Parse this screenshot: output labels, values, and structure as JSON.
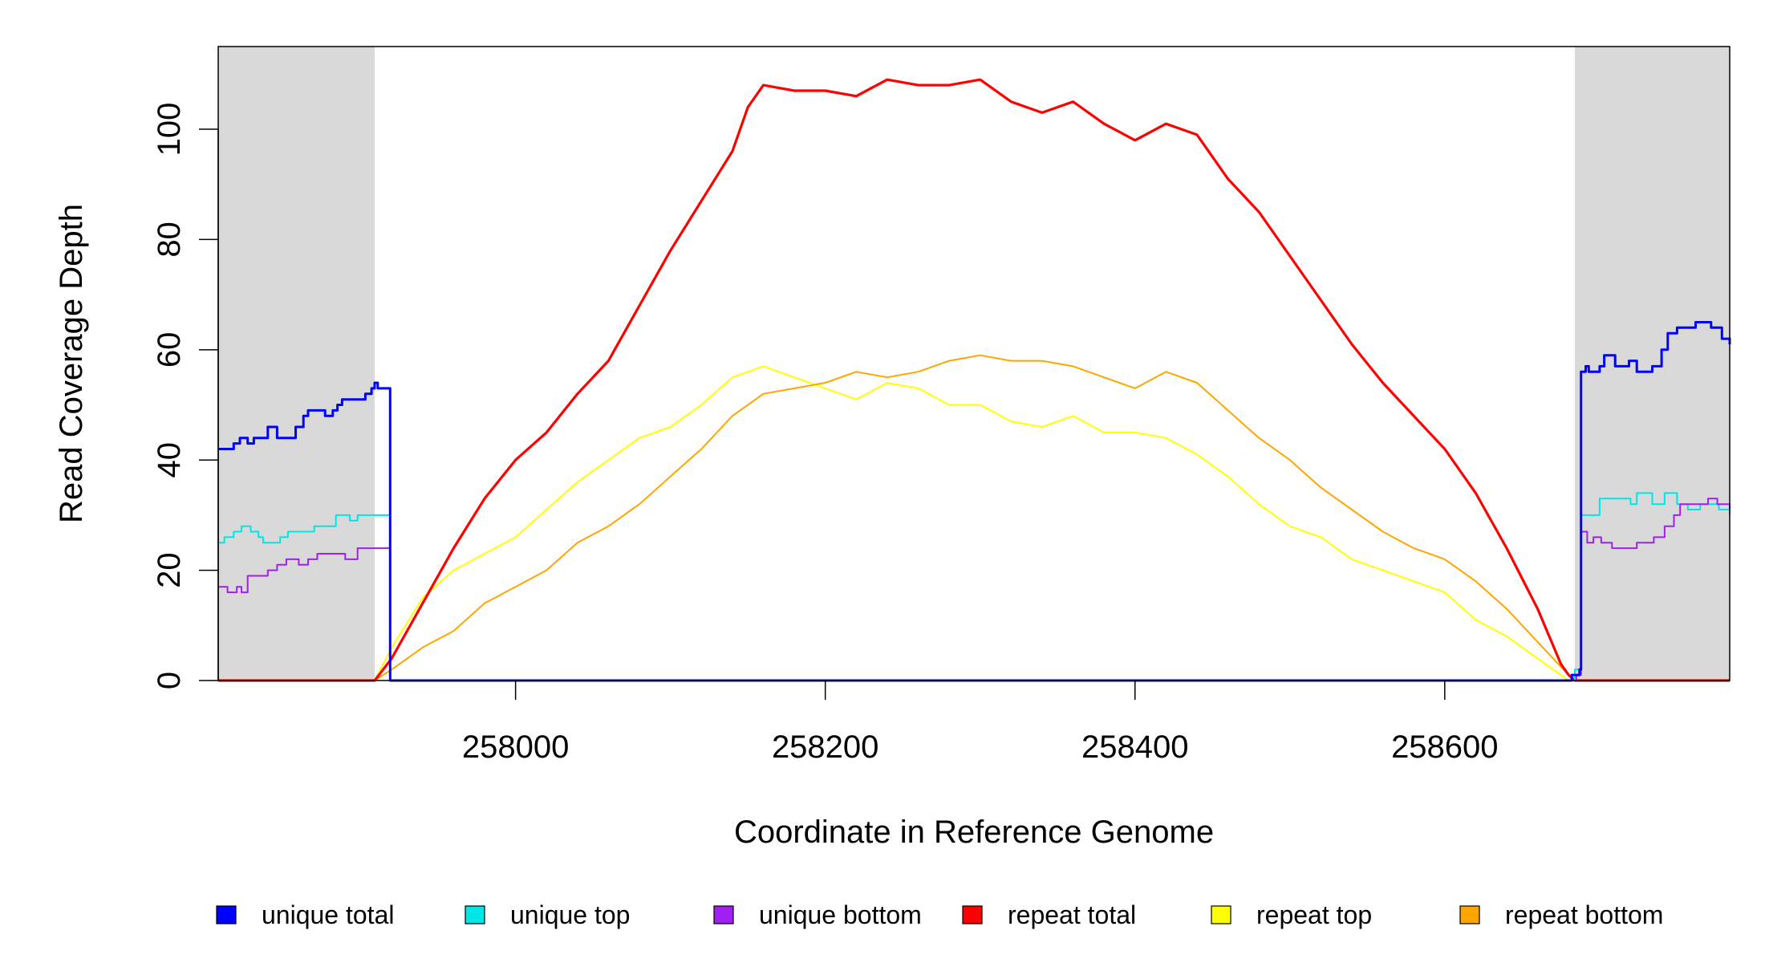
{
  "chart_data": {
    "type": "line",
    "title": "",
    "xlabel": "Coordinate in Reference Genome",
    "ylabel": "Read Coverage Depth",
    "xlim": [
      257808,
      258784
    ],
    "ylim": [
      0,
      115
    ],
    "xticks": [
      258000,
      258200,
      258400,
      258600
    ],
    "yticks": [
      0,
      20,
      40,
      60,
      80,
      100
    ],
    "x_tick_labels": [
      "258000",
      "258200",
      "258400",
      "258600"
    ],
    "y_tick_labels": [
      "0",
      "20",
      "40",
      "60",
      "80",
      "100"
    ],
    "grid": false,
    "legend_position": "bottom",
    "shaded_regions": [
      {
        "x": [
          257808,
          257909
        ],
        "color": "#d9d9d9"
      },
      {
        "x": [
          258684,
          258784
        ],
        "color": "#d9d9d9"
      }
    ],
    "series": [
      {
        "name": "unique total",
        "color": "#0000ff",
        "step": true,
        "points": [
          [
            257808,
            42
          ],
          [
            257812,
            42
          ],
          [
            257818,
            43
          ],
          [
            257822,
            44
          ],
          [
            257827,
            43
          ],
          [
            257831,
            44
          ],
          [
            257837,
            44
          ],
          [
            257840,
            46
          ],
          [
            257846,
            44
          ],
          [
            257854,
            44
          ],
          [
            257858,
            46
          ],
          [
            257863,
            48
          ],
          [
            257866,
            49
          ],
          [
            257877,
            48
          ],
          [
            257882,
            49
          ],
          [
            257885,
            50
          ],
          [
            257888,
            51
          ],
          [
            257899,
            51
          ],
          [
            257903,
            52
          ],
          [
            257907,
            53
          ],
          [
            257909,
            54
          ],
          [
            257911,
            53
          ],
          [
            257919,
            53
          ],
          [
            257919,
            0
          ],
          [
            258680,
            0
          ],
          [
            258682,
            1
          ],
          [
            258687,
            2
          ],
          [
            258688,
            56
          ],
          [
            258691,
            57
          ],
          [
            258693,
            56
          ],
          [
            258700,
            57
          ],
          [
            258703,
            59
          ],
          [
            258710,
            57
          ],
          [
            258716,
            57
          ],
          [
            258719,
            58
          ],
          [
            258724,
            56
          ],
          [
            258734,
            57
          ],
          [
            258740,
            60
          ],
          [
            258744,
            63
          ],
          [
            258750,
            64
          ],
          [
            258758,
            64
          ],
          [
            258762,
            65
          ],
          [
            258772,
            64
          ],
          [
            258779,
            62
          ],
          [
            258784,
            61
          ]
        ]
      },
      {
        "name": "unique top",
        "color": "#00e5e5",
        "step": true,
        "points": [
          [
            257808,
            25
          ],
          [
            257812,
            26
          ],
          [
            257818,
            27
          ],
          [
            257823,
            28
          ],
          [
            257829,
            27
          ],
          [
            257834,
            26
          ],
          [
            257837,
            25
          ],
          [
            257848,
            26
          ],
          [
            257853,
            27
          ],
          [
            257870,
            28
          ],
          [
            257884,
            30
          ],
          [
            257893,
            29
          ],
          [
            257898,
            30
          ],
          [
            257919,
            29
          ],
          [
            257919,
            0
          ],
          [
            258682,
            0
          ],
          [
            258684,
            2
          ],
          [
            258688,
            30
          ],
          [
            258700,
            33
          ],
          [
            258712,
            33
          ],
          [
            258720,
            32
          ],
          [
            258724,
            34
          ],
          [
            258734,
            32
          ],
          [
            258742,
            34
          ],
          [
            258750,
            32
          ],
          [
            258757,
            31
          ],
          [
            258765,
            32
          ],
          [
            258777,
            31
          ],
          [
            258784,
            30
          ]
        ]
      },
      {
        "name": "unique bottom",
        "color": "#a020f0",
        "step": true,
        "points": [
          [
            257808,
            17
          ],
          [
            257814,
            16
          ],
          [
            257820,
            17
          ],
          [
            257823,
            16
          ],
          [
            257827,
            19
          ],
          [
            257834,
            19
          ],
          [
            257840,
            20
          ],
          [
            257846,
            21
          ],
          [
            257852,
            22
          ],
          [
            257860,
            21
          ],
          [
            257866,
            22
          ],
          [
            257872,
            23
          ],
          [
            257890,
            22
          ],
          [
            257898,
            24
          ],
          [
            257906,
            24
          ],
          [
            257919,
            24
          ],
          [
            257919,
            0
          ],
          [
            258682,
            0
          ],
          [
            258685,
            1
          ],
          [
            258688,
            27
          ],
          [
            258692,
            25
          ],
          [
            258696,
            26
          ],
          [
            258701,
            25
          ],
          [
            258708,
            24
          ],
          [
            258715,
            24
          ],
          [
            258720,
            24
          ],
          [
            258724,
            25
          ],
          [
            258735,
            26
          ],
          [
            258742,
            28
          ],
          [
            258748,
            30
          ],
          [
            258752,
            32
          ],
          [
            258764,
            32
          ],
          [
            258770,
            33
          ],
          [
            258776,
            32
          ],
          [
            258784,
            31
          ]
        ]
      },
      {
        "name": "repeat total",
        "color": "#ff0000",
        "step": false,
        "points": [
          [
            257808,
            0
          ],
          [
            257909,
            0
          ],
          [
            257920,
            4
          ],
          [
            257940,
            14
          ],
          [
            257960,
            24
          ],
          [
            257980,
            33
          ],
          [
            258000,
            40
          ],
          [
            258020,
            45
          ],
          [
            258040,
            52
          ],
          [
            258060,
            58
          ],
          [
            258080,
            68
          ],
          [
            258100,
            78
          ],
          [
            258120,
            87
          ],
          [
            258140,
            96
          ],
          [
            258150,
            104
          ],
          [
            258160,
            108
          ],
          [
            258180,
            107
          ],
          [
            258200,
            107
          ],
          [
            258220,
            106
          ],
          [
            258240,
            109
          ],
          [
            258260,
            108
          ],
          [
            258280,
            108
          ],
          [
            258300,
            109
          ],
          [
            258320,
            105
          ],
          [
            258340,
            103
          ],
          [
            258360,
            105
          ],
          [
            258380,
            101
          ],
          [
            258400,
            98
          ],
          [
            258420,
            101
          ],
          [
            258440,
            99
          ],
          [
            258460,
            91
          ],
          [
            258480,
            85
          ],
          [
            258500,
            77
          ],
          [
            258520,
            69
          ],
          [
            258540,
            61
          ],
          [
            258560,
            54
          ],
          [
            258580,
            48
          ],
          [
            258600,
            42
          ],
          [
            258620,
            34
          ],
          [
            258640,
            24
          ],
          [
            258660,
            13
          ],
          [
            258675,
            3
          ],
          [
            258680,
            1
          ],
          [
            258684,
            0
          ],
          [
            258784,
            0
          ]
        ]
      },
      {
        "name": "repeat top",
        "color": "#ffff00",
        "step": false,
        "points": [
          [
            257808,
            0
          ],
          [
            257909,
            0
          ],
          [
            257920,
            6
          ],
          [
            257940,
            15
          ],
          [
            257960,
            20
          ],
          [
            257980,
            23
          ],
          [
            258000,
            26
          ],
          [
            258020,
            31
          ],
          [
            258040,
            36
          ],
          [
            258060,
            40
          ],
          [
            258080,
            44
          ],
          [
            258100,
            46
          ],
          [
            258120,
            50
          ],
          [
            258140,
            55
          ],
          [
            258160,
            57
          ],
          [
            258180,
            55
          ],
          [
            258200,
            53
          ],
          [
            258220,
            51
          ],
          [
            258240,
            54
          ],
          [
            258260,
            53
          ],
          [
            258280,
            50
          ],
          [
            258300,
            50
          ],
          [
            258320,
            47
          ],
          [
            258340,
            46
          ],
          [
            258360,
            48
          ],
          [
            258380,
            45
          ],
          [
            258400,
            45
          ],
          [
            258420,
            44
          ],
          [
            258440,
            41
          ],
          [
            258460,
            37
          ],
          [
            258480,
            32
          ],
          [
            258500,
            28
          ],
          [
            258520,
            26
          ],
          [
            258540,
            22
          ],
          [
            258560,
            20
          ],
          [
            258580,
            18
          ],
          [
            258600,
            16
          ],
          [
            258620,
            11
          ],
          [
            258640,
            8
          ],
          [
            258660,
            4
          ],
          [
            258680,
            0
          ],
          [
            258784,
            0
          ]
        ]
      },
      {
        "name": "repeat bottom",
        "color": "#ffa500",
        "step": false,
        "points": [
          [
            257808,
            0
          ],
          [
            257909,
            0
          ],
          [
            257920,
            2
          ],
          [
            257940,
            6
          ],
          [
            257960,
            9
          ],
          [
            257980,
            14
          ],
          [
            258000,
            17
          ],
          [
            258020,
            20
          ],
          [
            258040,
            25
          ],
          [
            258060,
            28
          ],
          [
            258080,
            32
          ],
          [
            258100,
            37
          ],
          [
            258120,
            42
          ],
          [
            258140,
            48
          ],
          [
            258160,
            52
          ],
          [
            258180,
            53
          ],
          [
            258200,
            54
          ],
          [
            258220,
            56
          ],
          [
            258240,
            55
          ],
          [
            258260,
            56
          ],
          [
            258280,
            58
          ],
          [
            258300,
            59
          ],
          [
            258320,
            58
          ],
          [
            258340,
            58
          ],
          [
            258360,
            57
          ],
          [
            258380,
            55
          ],
          [
            258400,
            53
          ],
          [
            258420,
            56
          ],
          [
            258440,
            54
          ],
          [
            258460,
            49
          ],
          [
            258480,
            44
          ],
          [
            258500,
            40
          ],
          [
            258520,
            35
          ],
          [
            258540,
            31
          ],
          [
            258560,
            27
          ],
          [
            258580,
            24
          ],
          [
            258600,
            22
          ],
          [
            258620,
            18
          ],
          [
            258640,
            13
          ],
          [
            258660,
            7
          ],
          [
            258680,
            1
          ],
          [
            258684,
            0
          ],
          [
            258784,
            0
          ]
        ]
      }
    ]
  }
}
